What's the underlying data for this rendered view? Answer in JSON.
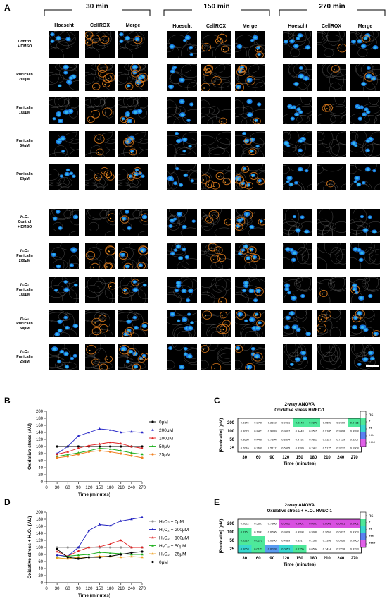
{
  "panel_a": {
    "letter": "A",
    "timepoints": [
      "30 min",
      "150 min",
      "270 min"
    ],
    "channels": [
      "Hoescht",
      "CellROX",
      "Merge"
    ],
    "rows": [
      {
        "lines": [
          "Control",
          "+ DMSO"
        ]
      },
      {
        "lines": [
          "Punicalin",
          "200μM"
        ]
      },
      {
        "lines": [
          "Punicalin",
          "100μM"
        ]
      },
      {
        "lines": [
          "Punicalin",
          "50μM"
        ]
      },
      {
        "lines": [
          "Punicalin",
          "25μM"
        ]
      },
      {
        "lines": [
          "H₂O₂",
          "Control",
          "+ DMSO"
        ]
      },
      {
        "lines": [
          "H₂O₂",
          "Punicalin",
          "200μM"
        ]
      },
      {
        "lines": [
          "H₂O₂",
          "Punicalin",
          "100μM"
        ]
      },
      {
        "lines": [
          "H₂O₂",
          "Punicalin",
          "50μM"
        ]
      },
      {
        "lines": [
          "H₂O₂",
          "Punicalin",
          "25μM"
        ]
      }
    ]
  },
  "chart_data": [
    {
      "panel": "B",
      "type": "line",
      "xlabel": "Time (minutes)",
      "ylabel": "Oxidative stress (AU)",
      "x": [
        30,
        60,
        90,
        120,
        150,
        180,
        210,
        240,
        270
      ],
      "xlim": [
        0,
        270
      ],
      "ylim": [
        0,
        200
      ],
      "yticks": [
        0,
        20,
        40,
        60,
        80,
        100,
        120,
        140,
        160,
        180,
        200
      ],
      "legend_position": "right",
      "series": [
        {
          "name": "0μM",
          "color": "#000000",
          "marker": "circle",
          "values": [
            100,
            100,
            100,
            100,
            100,
            100,
            100,
            100,
            100
          ]
        },
        {
          "name": "200μM",
          "color": "#2828c8",
          "marker": "triangle",
          "values": [
            80,
            100,
            130,
            140,
            150,
            147,
            140,
            142,
            140
          ]
        },
        {
          "name": "100μM",
          "color": "#e02020",
          "marker": "triangle",
          "values": [
            78,
            85,
            95,
            103,
            107,
            112,
            108,
            100,
            95
          ]
        },
        {
          "name": "50μM",
          "color": "#20b020",
          "marker": "triangle",
          "values": [
            72,
            77,
            82,
            88,
            95,
            93,
            88,
            82,
            78
          ]
        },
        {
          "name": "25μM",
          "color": "#f08020",
          "marker": "circle",
          "values": [
            68,
            72,
            78,
            85,
            88,
            85,
            80,
            74,
            68
          ]
        }
      ]
    },
    {
      "panel": "D",
      "type": "line",
      "xlabel": "Time (minutes)",
      "ylabel": "Oxidative stress + H₂O₂ (AU)",
      "x": [
        30,
        60,
        90,
        120,
        150,
        180,
        210,
        240,
        270
      ],
      "xlim": [
        0,
        270
      ],
      "ylim": [
        0,
        200
      ],
      "yticks": [
        0,
        20,
        40,
        60,
        80,
        100,
        120,
        140,
        160,
        180,
        200
      ],
      "legend_position": "right",
      "series": [
        {
          "name": "H₂O₂ + 0μM",
          "color": "#909090",
          "marker": "circle",
          "values": [
            100,
            100,
            100,
            100,
            100,
            100,
            100,
            100,
            100
          ]
        },
        {
          "name": "H₂O₂ + 200μM",
          "color": "#2020c0",
          "marker": "triangle",
          "values": [
            78,
            75,
            100,
            148,
            165,
            162,
            175,
            180,
            185
          ]
        },
        {
          "name": "H₂O₂ + 100μM",
          "color": "#e02020",
          "marker": "triangle",
          "values": [
            88,
            75,
            90,
            100,
            102,
            110,
            120,
            100,
            100
          ]
        },
        {
          "name": "H₂O₂ + 50μM",
          "color": "#20b020",
          "marker": "triangle",
          "values": [
            72,
            75,
            78,
            80,
            86,
            84,
            82,
            80,
            80
          ]
        },
        {
          "name": "H₂O₂ + 25μM",
          "color": "#f0a020",
          "marker": "triangle",
          "values": [
            70,
            68,
            72,
            72,
            75,
            74,
            72,
            74,
            72
          ]
        },
        {
          "name": "0μM",
          "color": "#000000",
          "marker": "circle",
          "values": [
            95,
            72,
            68,
            72,
            72,
            75,
            80,
            85,
            88
          ]
        }
      ]
    },
    {
      "panel": "C",
      "type": "heatmap",
      "title": "2-way ANOVA",
      "subtitle": "Oxidative stress  HMEC-1",
      "xlabel": "Time (minutes)",
      "ylabel": "[Punicalin] (μM)",
      "x": [
        "30",
        "60",
        "90",
        "120",
        "150",
        "180",
        "210",
        "240",
        "270"
      ],
      "y": [
        "200",
        "100",
        "50",
        "25"
      ],
      "values": [
        [
          "0.8145",
          "0.9730",
          "0.2162",
          "0.0081",
          "0.0143",
          "0.0273",
          "0.0589",
          "0.0609",
          "0.0436"
        ],
        [
          "0.5073",
          "0.8471",
          "0.9999",
          "0.9007",
          "0.9443",
          "0.8515",
          "0.9105",
          "0.9998",
          "0.9998"
        ],
        [
          "0.3636",
          "0.4480",
          "0.7354",
          "0.8394",
          "0.9792",
          "0.9815",
          "0.9327",
          "0.7159",
          "0.5207"
        ],
        [
          "0.2016",
          "0.2659",
          "0.5117",
          "0.5505",
          "0.8289",
          "0.7417",
          "0.5175",
          "0.3232",
          "0.1908"
        ]
      ],
      "colors": [
        [
          "#ffffff",
          "#ffffff",
          "#ffffff",
          "#ffffff",
          "#4ee89a",
          "#4ee89a",
          "#ffffff",
          "#ffffff",
          "#4ee89a"
        ],
        [
          "#ffffff",
          "#ffffff",
          "#ffffff",
          "#ffffff",
          "#ffffff",
          "#ffffff",
          "#ffffff",
          "#ffffff",
          "#ffffff"
        ],
        [
          "#ffffff",
          "#ffffff",
          "#ffffff",
          "#ffffff",
          "#ffffff",
          "#ffffff",
          "#ffffff",
          "#ffffff",
          "#ffffff"
        ],
        [
          "#ffffff",
          "#ffffff",
          "#ffffff",
          "#ffffff",
          "#ffffff",
          "#ffffff",
          "#ffffff",
          "#ffffff",
          "#ffffff"
        ]
      ],
      "legend": [
        {
          "label": "ns",
          "color": "#ffffff"
        },
        {
          "label": "*",
          "color": "#4ee89a"
        },
        {
          "label": "**",
          "color": "#38d8d0"
        },
        {
          "label": "***",
          "color": "#5a80f0"
        },
        {
          "label": "****",
          "color": "#e060e8"
        }
      ]
    },
    {
      "panel": "E",
      "type": "heatmap",
      "title": "2-way ANOVA",
      "subtitle": "Oxidative stress + H₂O₂ HMEC-1",
      "xlabel": "Time (minutes)",
      "ylabel": "[Punicalin] (μM)",
      "x": [
        "30",
        "60",
        "90",
        "120",
        "150",
        "180",
        "210",
        "240",
        "270"
      ],
      "y": [
        "200",
        "100",
        "50",
        "25"
      ],
      "values": [
        [
          "0.0622",
          "0.5601",
          "0.7866",
          "0.0002",
          "0.0001",
          "0.0001",
          "0.0001",
          "0.0001",
          "0.0001"
        ],
        [
          "0.0351",
          "0.1047",
          "0.6696",
          "0.9999",
          "0.9998",
          "0.9930",
          "0.2657",
          "0.0837",
          "0.9303"
        ],
        [
          "0.0219",
          "0.0272",
          "0.0990",
          "0.4389",
          "0.3517",
          "0.1359",
          "0.1398",
          "0.0626",
          "0.0660"
        ],
        [
          "0.0063",
          "0.0173",
          "0.0028",
          "0.0051",
          "0.0155",
          "0.0534",
          "0.1414",
          "0.2718",
          "0.3293"
        ]
      ],
      "colors": [
        [
          "#ffffff",
          "#ffffff",
          "#ffffff",
          "#d850e0",
          "#d850e0",
          "#d850e0",
          "#d850e0",
          "#d850e0",
          "#d850e0"
        ],
        [
          "#4ee89a",
          "#ffffff",
          "#ffffff",
          "#ffffff",
          "#ffffff",
          "#ffffff",
          "#ffffff",
          "#ffffff",
          "#ffffff"
        ],
        [
          "#4ee89a",
          "#4ee89a",
          "#ffffff",
          "#ffffff",
          "#ffffff",
          "#ffffff",
          "#ffffff",
          "#ffffff",
          "#ffffff"
        ],
        [
          "#38d8d0",
          "#4ee89a",
          "#5a9cf0",
          "#38d8d0",
          "#4ee89a",
          "#ffffff",
          "#ffffff",
          "#ffffff",
          "#ffffff"
        ]
      ],
      "legend": [
        {
          "label": "ns",
          "color": "#ffffff"
        },
        {
          "label": "*",
          "color": "#4ee89a"
        },
        {
          "label": "**",
          "color": "#38d8d0"
        },
        {
          "label": "***",
          "color": "#5a80f0"
        },
        {
          "label": "****",
          "color": "#e060e8"
        }
      ]
    }
  ]
}
